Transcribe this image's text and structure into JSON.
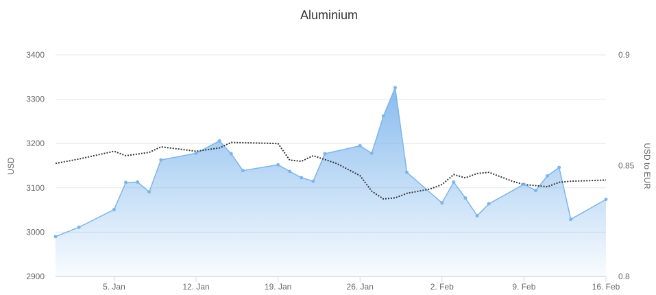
{
  "chart_data": {
    "type": "area",
    "title": "Aluminium",
    "xlabel": "",
    "x_tick_labels": [
      "5. Jan",
      "12. Jan",
      "19. Jan",
      "26. Jan",
      "2. Feb",
      "9. Feb",
      "16. Feb"
    ],
    "x_range_days": [
      0,
      47
    ],
    "y_left": {
      "label": "USD",
      "min": 2900,
      "max": 3400,
      "ticks": [
        "2900",
        "3000",
        "3100",
        "3200",
        "3300",
        "3400"
      ]
    },
    "y_right": {
      "label": "USD to EUR",
      "min": 0.8,
      "max": 0.9,
      "ticks": [
        "0.8",
        "0.85",
        "0.9"
      ]
    },
    "grid": true,
    "series": [
      {
        "kind": "area",
        "axis": "left",
        "color": "#7cb5ec",
        "points": [
          [
            "2015-12-31",
            2990
          ],
          [
            "2016-01-02",
            3011
          ],
          [
            "2016-01-05",
            3051
          ],
          [
            "2016-01-06",
            3112
          ],
          [
            "2016-01-07",
            3113
          ],
          [
            "2016-01-08",
            3091
          ],
          [
            "2016-01-09",
            3163
          ],
          [
            "2016-01-12",
            3178
          ],
          [
            "2016-01-14",
            3206
          ],
          [
            "2016-01-15",
            3177
          ],
          [
            "2016-01-16",
            3139
          ],
          [
            "2016-01-19",
            3152
          ],
          [
            "2016-01-20",
            3137
          ],
          [
            "2016-01-21",
            3123
          ],
          [
            "2016-01-22",
            3115
          ],
          [
            "2016-01-23",
            3177
          ],
          [
            "2016-01-26",
            3195
          ],
          [
            "2016-01-27",
            3178
          ],
          [
            "2016-01-28",
            3262
          ],
          [
            "2016-01-29",
            3326
          ],
          [
            "2016-01-30",
            3135
          ],
          [
            "2016-02-02",
            3066
          ],
          [
            "2016-02-03",
            3113
          ],
          [
            "2016-02-04",
            3077
          ],
          [
            "2016-02-05",
            3037
          ],
          [
            "2016-02-06",
            3064
          ],
          [
            "2016-02-09",
            3108
          ],
          [
            "2016-02-10",
            3094
          ],
          [
            "2016-02-11",
            3127
          ],
          [
            "2016-02-12",
            3146
          ],
          [
            "2016-02-13",
            3029
          ],
          [
            "2016-02-16",
            3074
          ]
        ]
      },
      {
        "kind": "line",
        "axis": "right",
        "style": "dotted",
        "color": "#333333",
        "points": [
          [
            "2015-12-31",
            0.851
          ],
          [
            "2016-01-02",
            0.853
          ],
          [
            "2016-01-05",
            0.8565
          ],
          [
            "2016-01-06",
            0.8545
          ],
          [
            "2016-01-08",
            0.856
          ],
          [
            "2016-01-09",
            0.8585
          ],
          [
            "2016-01-12",
            0.8565
          ],
          [
            "2016-01-14",
            0.858
          ],
          [
            "2016-01-15",
            0.8605
          ],
          [
            "2016-01-19",
            0.86
          ],
          [
            "2016-01-20",
            0.8525
          ],
          [
            "2016-01-21",
            0.852
          ],
          [
            "2016-01-22",
            0.8545
          ],
          [
            "2016-01-24",
            0.851
          ],
          [
            "2016-01-26",
            0.8455
          ],
          [
            "2016-01-27",
            0.8385
          ],
          [
            "2016-01-28",
            0.835
          ],
          [
            "2016-01-29",
            0.8355
          ],
          [
            "2016-01-30",
            0.8375
          ],
          [
            "2016-02-01",
            0.8395
          ],
          [
            "2016-02-02",
            0.8415
          ],
          [
            "2016-02-03",
            0.846
          ],
          [
            "2016-02-04",
            0.8445
          ],
          [
            "2016-02-05",
            0.8465
          ],
          [
            "2016-02-06",
            0.847
          ],
          [
            "2016-02-08",
            0.843
          ],
          [
            "2016-02-09",
            0.8415
          ],
          [
            "2016-02-11",
            0.8405
          ],
          [
            "2016-02-12",
            0.8425
          ],
          [
            "2016-02-13",
            0.843
          ],
          [
            "2016-02-16",
            0.8435
          ]
        ]
      }
    ]
  }
}
